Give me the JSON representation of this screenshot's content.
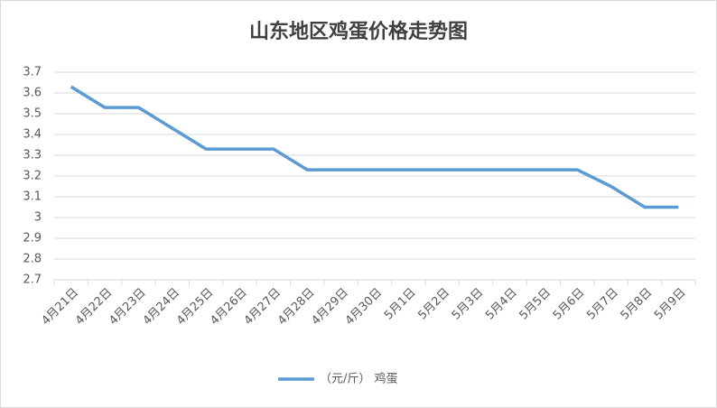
{
  "chart_data": {
    "type": "line",
    "title": "山东地区鸡蛋价格走势图",
    "categories": [
      "4月21日",
      "4月22日",
      "4月23日",
      "4月24日",
      "4月25日",
      "4月26日",
      "4月27日",
      "4月28日",
      "4月29日",
      "4月30日",
      "5月1日",
      "5月2日",
      "5月3日",
      "5月4日",
      "5月5日",
      "5月6日",
      "5月7日",
      "5月8日",
      "5月9日"
    ],
    "series": [
      {
        "name": "（元/斤） 鸡蛋",
        "color": "#5b9bd5",
        "values": [
          3.63,
          3.53,
          3.53,
          3.43,
          3.33,
          3.33,
          3.33,
          3.23,
          3.23,
          3.23,
          3.23,
          3.23,
          3.23,
          3.23,
          3.23,
          3.23,
          3.15,
          3.05,
          3.05
        ]
      }
    ],
    "ylim": [
      2.7,
      3.7
    ],
    "yticks": [
      2.7,
      2.8,
      2.9,
      3,
      3.1,
      3.2,
      3.3,
      3.4,
      3.5,
      3.6,
      3.7
    ],
    "grid": true,
    "legend": "bottom"
  }
}
